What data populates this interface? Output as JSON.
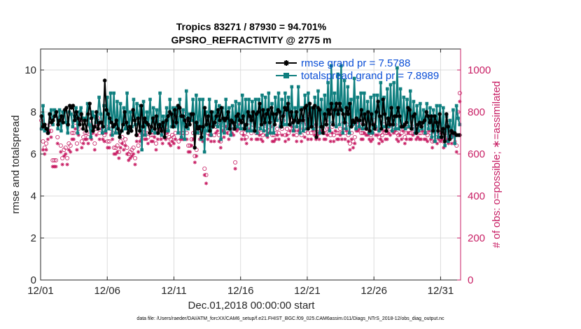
{
  "chart_data": {
    "type": "line",
    "title": "Tropics 83271 / 87930 = 94.701%",
    "subtitle": "GPSRO_REFRACTIVITY @ 2775 m",
    "xlabel": "Dec.01,2018 00:00:00 start",
    "ylabel": "rmse and totalspread",
    "y2label": "# of obs: o=possible; ∗=assimilated",
    "footnote": "data file: /Users/raeder/DAI/ATM_forcXX/CAM6_setup/f.e21.FHIST_BGC.f09_025.CAM6assim.011/Diags_NTrS_2018-12/obs_diag_output.nc",
    "xlim": [
      0,
      31.5
    ],
    "ylim": [
      0,
      11
    ],
    "y2lim": [
      0,
      1100
    ],
    "xticks": [
      0,
      5,
      10,
      15,
      20,
      25,
      30
    ],
    "xtick_labels": [
      "12/01",
      "12/06",
      "12/11",
      "12/16",
      "12/21",
      "12/26",
      "12/31"
    ],
    "yticks": [
      0,
      2,
      4,
      6,
      8,
      10
    ],
    "ytick_labels": [
      "0",
      "2",
      "4",
      "6",
      "8",
      "10"
    ],
    "y2ticks": [
      0,
      200,
      400,
      600,
      800,
      1000
    ],
    "y2tick_labels": [
      "0",
      "200",
      "400",
      "600",
      "800",
      "1000"
    ],
    "grid": true,
    "legend_position": "top-right",
    "colors": {
      "rmse": "#000000",
      "spread": "#0f7f7f",
      "obs": "#c81e64",
      "legend_text": "#0a4ed6",
      "right_axis": "#c81e64"
    },
    "series": [
      {
        "name": "rmse grand pr = 7.5788",
        "color": "#000000",
        "marker": "asterisk",
        "values": [
          7.8,
          7.3,
          7.4,
          7.2,
          7.0,
          7.9,
          7.5,
          7.6,
          7.8,
          8.0,
          7.4,
          7.6,
          7.8,
          7.5,
          8.1,
          8.2,
          7.4,
          8.3,
          8.2,
          8.3,
          7.6,
          8.0,
          7.7,
          7.4,
          7.9,
          7.2,
          7.6,
          7.1,
          7.9,
          8.4,
          7.7,
          7.1,
          7.3,
          8.0,
          7.2,
          7.5,
          7.5,
          7.3,
          9.5,
          8.1,
          7.9,
          7.7,
          7.5,
          7.3,
          7.4,
          7.6,
          7.2,
          6.8,
          7.1,
          7.4,
          8.0,
          7.5,
          7.0,
          7.3,
          7.1,
          8.1,
          7.6,
          6.9,
          7.7,
          7.1,
          8.3,
          7.3,
          7.7,
          7.5,
          7.4,
          7.0,
          7.3,
          7.7,
          7.2,
          7.8,
          7.0,
          7.4,
          7.1,
          7.5,
          6.8,
          7.6,
          7.8,
          8.0,
          7.9,
          7.3,
          8.1,
          7.5,
          8.3,
          8.2,
          7.8,
          7.8,
          7.6,
          7.3,
          7.7,
          7.4,
          7.9,
          7.9,
          6.3,
          7.5,
          7.2,
          7.3,
          6.8,
          7.3,
          8.2,
          7.4,
          7.8,
          7.1,
          8.0,
          7.3,
          7.5,
          7.8,
          8.1,
          7.6,
          8.2,
          7.7,
          7.6,
          7.7,
          8.0,
          7.2,
          7.6,
          7.5,
          7.2,
          7.8,
          7.9,
          7.6,
          7.5,
          7.8,
          7.2,
          7.4,
          8.0,
          7.8,
          7.6,
          8.0,
          7.1,
          7.9,
          8.0,
          8.4,
          7.4,
          8.1,
          7.5,
          7.9,
          8.1,
          7.5,
          8.2,
          7.9,
          7.4,
          7.9,
          8.1,
          8.0,
          7.3,
          7.8,
          8.2,
          8.1,
          8.4,
          7.4,
          8.0,
          7.5,
          7.6,
          8.0,
          7.5,
          7.6,
          8.1,
          7.6,
          8.2,
          8.3,
          7.2,
          8.4,
          7.3,
          8.2,
          8.3,
          6.8,
          8.2,
          8.1,
          7.3,
          7.0,
          7.9,
          7.4,
          8.1,
          7.9,
          8.4,
          7.4,
          8.1,
          8.4,
          7.9,
          8.4,
          8.1,
          7.9,
          7.5,
          8.2,
          7.9,
          8.4,
          7.3,
          7.6,
          7.5,
          7.7,
          7.6,
          7.6,
          8.1,
          7.4,
          7.9,
          7.2,
          8.0,
          7.1,
          7.9,
          7.4,
          7.2,
          8.0,
          8.5,
          7.8,
          7.2,
          8.6,
          7.9,
          7.1,
          7.7,
          7.4,
          8.2,
          7.4,
          7.8,
          7.8,
          8.2,
          7.8,
          7.3,
          7.3,
          7.4,
          7.5,
          8.2,
          8.1,
          7.2,
          7.8,
          7.9,
          7.0,
          7.4,
          7.5,
          7.3,
          7.5,
          7.6,
          8.0,
          7.8,
          7.5,
          7.8,
          7.1,
          7.8,
          7.5,
          7.1,
          7.9,
          6.8,
          7.2,
          6.6,
          7.9,
          7.3,
          6.7,
          7.1,
          7.0,
          7.0,
          6.9,
          6.9,
          6.9
        ]
      },
      {
        "name": "totalspread grand pr = 7.8989",
        "color": "#0f7f7f",
        "marker": "square",
        "values": [
          7.2,
          8.3,
          7.1,
          7.2,
          7.0,
          7.9,
          8.1,
          7.4,
          8.1,
          8.0,
          7.2,
          8.1,
          7.1,
          8.0,
          8.0,
          7.5,
          7.0,
          8.0,
          7.9,
          7.3,
          7.8,
          8.2,
          7.0,
          8.0,
          8.2,
          7.7,
          7.7,
          7.6,
          8.4,
          7.4,
          6.8,
          8.0,
          7.8,
          7.5,
          7.6,
          8.7,
          7.9,
          7.0,
          8.3,
          7.1,
          8.7,
          7.2,
          8.9,
          6.9,
          8.9,
          7.0,
          8.5,
          7.0,
          8.4,
          7.1,
          8.2,
          7.2,
          8.9,
          7.1,
          8.0,
          7.3,
          8.6,
          7.4,
          8.4,
          7.5,
          8.3,
          6.2,
          8.5,
          6.9,
          8.0,
          7.4,
          8.6,
          7.1,
          8.2,
          7.0,
          8.1,
          7.3,
          8.9,
          6.9,
          7.8,
          7.1,
          8.2,
          7.1,
          8.6,
          7.3,
          8.2,
          7.3,
          8.2,
          7.0,
          8.6,
          6.8,
          8.1,
          6.7,
          9.0,
          7.2,
          7.9,
          7.6,
          8.6,
          7.0,
          8.8,
          7.0,
          8.6,
          6.7,
          8.6,
          6.1,
          8.0,
          7.1,
          8.6,
          6.9,
          8.0,
          7.4,
          8.5,
          7.3,
          8.3,
          6.7,
          8.2,
          7.0,
          8.6,
          7.2,
          8.2,
          6.9,
          8.3,
          7.2,
          8.5,
          7.3,
          8.4,
          7.2,
          8.8,
          7.2,
          8.6,
          7.1,
          8.6,
          7.1,
          8.5,
          7.1,
          8.6,
          7.0,
          8.6,
          7.2,
          8.8,
          7.1,
          8.7,
          6.9,
          8.9,
          7.0,
          8.4,
          7.0,
          8.7,
          7.6,
          8.9,
          7.3,
          8.6,
          7.4,
          8.9,
          7.4,
          8.7,
          7.4,
          9.2,
          7.1,
          8.2,
          7.3,
          9.2,
          7.0,
          8.2,
          7.1,
          8.8,
          7.2,
          8.9,
          7.3,
          8.2,
          7.2,
          8.7,
          7.4,
          9.0,
          7.0,
          8.6,
          7.3,
          8.8,
          7.4,
          9.4,
          7.1,
          10.2,
          7.5,
          8.9,
          7.3,
          9.8,
          7.4,
          10.2,
          7.0,
          9.5,
          7.2,
          9.2,
          7.0,
          8.6,
          7.4,
          9.6,
          7.2,
          8.7,
          7.3,
          8.9,
          7.2,
          8.9,
          7.3,
          8.5,
          7.0,
          8.7,
          7.0,
          8.8,
          7.3,
          8.8,
          7.1,
          9.4,
          7.3,
          8.7,
          7.3,
          9.1,
          7.3,
          9.3,
          7.1,
          9.4,
          7.2,
          10.1,
          7.2,
          9.1,
          7.3,
          8.7,
          7.2,
          8.6,
          7.3,
          9.0,
          7.2,
          8.5,
          7.0,
          8.3,
          7.1,
          8.4,
          7.2,
          8.1,
          7.0,
          8.4,
          7.2,
          8.2,
          6.8,
          8.1,
          6.6,
          8.3,
          6.8,
          8.3,
          6.8,
          8.2,
          6.4,
          7.8,
          6.6,
          7.6,
          6.8,
          8.1,
          6.5,
          8.3,
          7.7,
          7.4
        ]
      },
      {
        "name": "obs possible",
        "axis": "right",
        "color": "#c81e64",
        "marker": "circle",
        "values": [
          760,
          660,
          630,
          650,
          700,
          740,
          710,
          570,
          570,
          570,
          680,
          770,
          640,
          580,
          620,
          630,
          580,
          650,
          640,
          700,
          700,
          750,
          650,
          720,
          790,
          660,
          680,
          700,
          700,
          680,
          760,
          700,
          730,
          650,
          720,
          770,
          700,
          750,
          700,
          690,
          730,
          660,
          660,
          720,
          700,
          630,
          630,
          640,
          610,
          660,
          680,
          650,
          670,
          630,
          600,
          610,
          620,
          630,
          580,
          690,
          640,
          690,
          700,
          720,
          700,
          700,
          680,
          730,
          690,
          690,
          710,
          650,
          700,
          750,
          700,
          680,
          710,
          700,
          730,
          680,
          670,
          690,
          680,
          700,
          770,
          660,
          700,
          700,
          700,
          790,
          700,
          640,
          640,
          670,
          700,
          590,
          620,
          730,
          700,
          760,
          690,
          530,
          500,
          700,
          720,
          690,
          760,
          690,
          730,
          740,
          690,
          660,
          740,
          710,
          760,
          730,
          700,
          760,
          730,
          720,
          560,
          740,
          750,
          770,
          700,
          720,
          700,
          680,
          800,
          750,
          700,
          740,
          760,
          700,
          700,
          720,
          700,
          690,
          770,
          720,
          710,
          730,
          760,
          690,
          690,
          700,
          720,
          700,
          770,
          720,
          790,
          690,
          720,
          700,
          740,
          760,
          720,
          740,
          690,
          740,
          750,
          690,
          750,
          710,
          770,
          700,
          790,
          700,
          740,
          720,
          700,
          720,
          700,
          740,
          740,
          700,
          700,
          720,
          750,
          690,
          730,
          690,
          740,
          700,
          700,
          720,
          700,
          750,
          700,
          740,
          690,
          650,
          700,
          660,
          680,
          740,
          740,
          750,
          700,
          700,
          730,
          720,
          720,
          700,
          690,
          700,
          760,
          720,
          720,
          680,
          700,
          690,
          740,
          700,
          700,
          730,
          720,
          740,
          730,
          740,
          700,
          690,
          720,
          700,
          740,
          680,
          700,
          730,
          700,
          700,
          720,
          730,
          700,
          710,
          700,
          700,
          740,
          700,
          700,
          690,
          740,
          700,
          660,
          690,
          760,
          680,
          700,
          690,
          700,
          660,
          730,
          700,
          680,
          710,
          680,
          720,
          690,
          640,
          800,
          890
        ]
      },
      {
        "name": "obs assimilated",
        "axis": "right",
        "color": "#c81e64",
        "marker": "asterisk",
        "values": [
          720,
          620,
          600,
          620,
          670,
          710,
          680,
          540,
          540,
          540,
          650,
          740,
          610,
          550,
          590,
          600,
          550,
          620,
          610,
          670,
          670,
          720,
          620,
          690,
          760,
          630,
          650,
          670,
          670,
          650,
          730,
          670,
          700,
          620,
          690,
          740,
          670,
          720,
          670,
          660,
          700,
          630,
          630,
          690,
          670,
          600,
          600,
          610,
          580,
          630,
          650,
          620,
          640,
          600,
          570,
          580,
          590,
          600,
          550,
          660,
          610,
          660,
          670,
          690,
          670,
          670,
          650,
          700,
          660,
          660,
          680,
          620,
          670,
          720,
          670,
          650,
          680,
          670,
          700,
          650,
          640,
          660,
          650,
          670,
          740,
          630,
          670,
          670,
          670,
          760,
          670,
          610,
          610,
          640,
          670,
          560,
          590,
          700,
          670,
          730,
          660,
          500,
          460,
          670,
          690,
          660,
          730,
          660,
          700,
          710,
          660,
          630,
          710,
          680,
          730,
          700,
          670,
          730,
          700,
          690,
          530,
          710,
          720,
          740,
          670,
          690,
          670,
          650,
          770,
          720,
          670,
          710,
          730,
          670,
          670,
          690,
          670,
          660,
          740,
          690,
          680,
          700,
          730,
          660,
          660,
          670,
          690,
          670,
          740,
          690,
          760,
          660,
          690,
          670,
          710,
          730,
          690,
          710,
          660,
          710,
          720,
          660,
          720,
          680,
          740,
          670,
          760,
          670,
          710,
          690,
          670,
          690,
          670,
          710,
          710,
          670,
          670,
          690,
          720,
          660,
          700,
          660,
          710,
          670,
          670,
          690,
          670,
          720,
          670,
          710,
          660,
          620,
          670,
          630,
          650,
          710,
          710,
          720,
          670,
          670,
          700,
          690,
          690,
          670,
          660,
          670,
          730,
          690,
          690,
          650,
          670,
          660,
          710,
          670,
          670,
          700,
          690,
          710,
          700,
          710,
          670,
          660,
          690,
          670,
          710,
          650,
          670,
          700,
          670,
          670,
          690,
          700,
          670,
          680,
          670,
          670,
          710,
          670,
          670,
          660,
          710,
          670,
          630,
          660,
          730,
          650,
          670,
          660,
          670,
          630,
          700,
          670,
          650,
          680,
          650,
          690,
          660,
          610,
          770,
          850
        ]
      }
    ]
  }
}
